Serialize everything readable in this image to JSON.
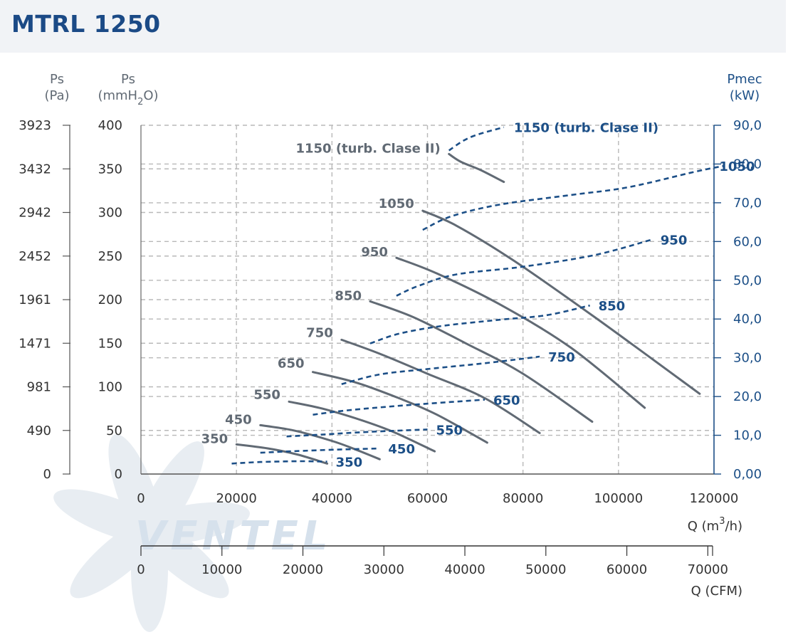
{
  "title": "MTRL 1250",
  "colors": {
    "gray": "#616a74",
    "blue": "#1c4f87",
    "grid": "#b8b8b8",
    "header_bg": "#f1f3f6",
    "watermark": "#d6e1ec"
  },
  "axes": {
    "left_pa": {
      "title": "Ps",
      "unit": "(Pa)",
      "ticks": [
        "3923",
        "3432",
        "2942",
        "2452",
        "1961",
        "1471",
        "981",
        "490",
        "0"
      ]
    },
    "left_mm": {
      "title": "Ps",
      "unit_prefix": "(mmH",
      "unit_sub": "2",
      "unit_suffix": "O)",
      "ticks": [
        "400",
        "350",
        "300",
        "250",
        "200",
        "150",
        "100",
        "50",
        "0"
      ]
    },
    "right_kw": {
      "title": "Pmec",
      "unit": "(kW)",
      "ticks": [
        "90,0",
        "80,0",
        "70,0",
        "60,0",
        "50,0",
        "40,0",
        "30,0",
        "20,0",
        "10,0",
        "0,00"
      ]
    },
    "bottom_m3h": {
      "label_prefix": "Q (m",
      "label_sup": "3",
      "label_suffix": "/h)",
      "ticks": [
        "0",
        "20000",
        "40000",
        "60000",
        "80000",
        "100000",
        "120000"
      ]
    },
    "bottom_cfm": {
      "label": "Q (CFM)",
      "ticks": [
        "0",
        "10000",
        "20000",
        "30000",
        "40000",
        "50000",
        "60000",
        "70000"
      ]
    }
  },
  "watermark": "VENTEL",
  "chart_data": {
    "type": "line",
    "title": "MTRL 1250",
    "xlabel": "Q (m3/h)",
    "ylabel": "Ps (mmH2O)",
    "y2label": "Pmec (kW)",
    "xlim": [
      0,
      120000
    ],
    "ylim": [
      0,
      400
    ],
    "y2lim": [
      0,
      90
    ],
    "grid": true,
    "pressure_series": [
      {
        "name": "350",
        "points": [
          [
            20000,
            34
          ],
          [
            27000,
            29
          ],
          [
            33000,
            22
          ],
          [
            39000,
            12
          ]
        ]
      },
      {
        "name": "450",
        "points": [
          [
            25000,
            56
          ],
          [
            32000,
            50
          ],
          [
            40000,
            38
          ],
          [
            45000,
            28
          ],
          [
            50000,
            17
          ]
        ]
      },
      {
        "name": "550",
        "points": [
          [
            31000,
            83
          ],
          [
            38000,
            75
          ],
          [
            46000,
            62
          ],
          [
            53000,
            48
          ],
          [
            61500,
            26
          ]
        ]
      },
      {
        "name": "650",
        "points": [
          [
            36000,
            117
          ],
          [
            45000,
            105
          ],
          [
            54000,
            87
          ],
          [
            62000,
            68
          ],
          [
            72500,
            36
          ]
        ]
      },
      {
        "name": "750",
        "points": [
          [
            42000,
            154
          ],
          [
            50000,
            138
          ],
          [
            60000,
            115
          ],
          [
            72000,
            87
          ],
          [
            83500,
            47
          ]
        ]
      },
      {
        "name": "850",
        "points": [
          [
            48000,
            198
          ],
          [
            57000,
            180
          ],
          [
            68000,
            150
          ],
          [
            80000,
            115
          ],
          [
            94500,
            60
          ]
        ]
      },
      {
        "name": "950",
        "points": [
          [
            53500,
            248
          ],
          [
            62000,
            230
          ],
          [
            75000,
            195
          ],
          [
            90000,
            145
          ],
          [
            105500,
            76
          ]
        ]
      },
      {
        "name": "1050",
        "points": [
          [
            59000,
            302
          ],
          [
            66000,
            285
          ],
          [
            78000,
            245
          ],
          [
            95000,
            180
          ],
          [
            117000,
            92
          ]
        ]
      },
      {
        "name": "1150 (turb. Clase II)",
        "points": [
          [
            64500,
            367
          ],
          [
            67000,
            358
          ],
          [
            71000,
            349
          ],
          [
            76000,
            335
          ]
        ]
      }
    ],
    "power_series": [
      {
        "name": "350",
        "points": [
          [
            19000,
            2.7
          ],
          [
            25000,
            3.1
          ],
          [
            33000,
            3.3
          ],
          [
            39000,
            3.2
          ]
        ]
      },
      {
        "name": "450",
        "points": [
          [
            25000,
            5.5
          ],
          [
            32000,
            5.9
          ],
          [
            41000,
            6.3
          ],
          [
            50000,
            6.6
          ]
        ]
      },
      {
        "name": "550",
        "points": [
          [
            30500,
            9.7
          ],
          [
            38000,
            10.2
          ],
          [
            48000,
            10.9
          ],
          [
            60000,
            11.5
          ]
        ]
      },
      {
        "name": "650",
        "points": [
          [
            36000,
            15.3
          ],
          [
            43000,
            16.4
          ],
          [
            55000,
            17.7
          ],
          [
            72000,
            19.2
          ]
        ]
      },
      {
        "name": "750",
        "points": [
          [
            42000,
            23.2
          ],
          [
            50000,
            25.7
          ],
          [
            60000,
            27.1
          ],
          [
            72000,
            28.6
          ],
          [
            83500,
            30.3
          ]
        ]
      },
      {
        "name": "850",
        "points": [
          [
            48000,
            33.7
          ],
          [
            54000,
            36.2
          ],
          [
            63000,
            38.2
          ],
          [
            75000,
            39.8
          ],
          [
            85000,
            41.0
          ],
          [
            94000,
            43.5
          ]
        ]
      },
      {
        "name": "950",
        "points": [
          [
            53500,
            46.0
          ],
          [
            58000,
            48.5
          ],
          [
            66000,
            51.5
          ],
          [
            80000,
            53.5
          ],
          [
            95000,
            56.5
          ],
          [
            107000,
            60.5
          ]
        ]
      },
      {
        "name": "1050",
        "points": [
          [
            59000,
            63.0
          ],
          [
            65000,
            66.5
          ],
          [
            75000,
            69.5
          ],
          [
            90000,
            72.0
          ],
          [
            102000,
            74.0
          ],
          [
            116000,
            78.0
          ],
          [
            122000,
            79.5
          ]
        ]
      },
      {
        "name": "1150 (turb. Clase II)",
        "points": [
          [
            64500,
            83.5
          ],
          [
            67500,
            86.0
          ],
          [
            70500,
            87.6
          ],
          [
            76000,
            89.5
          ]
        ]
      }
    ]
  }
}
